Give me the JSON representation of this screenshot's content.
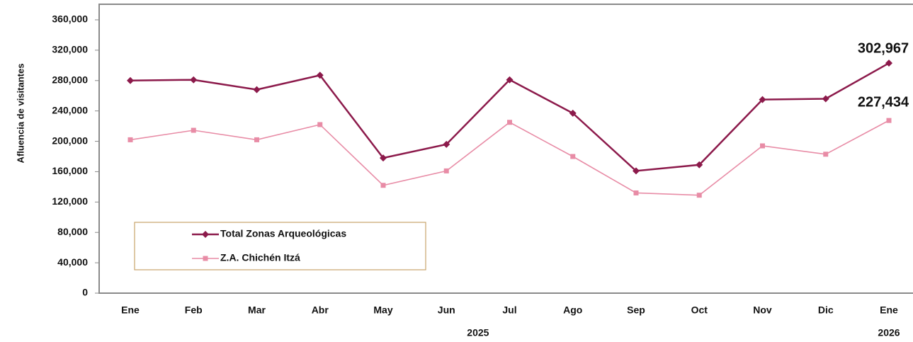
{
  "chart_data": {
    "type": "line",
    "y_label": "Afluencia de visitantes",
    "categories": [
      "Ene",
      "Feb",
      "Mar",
      "Abr",
      "May",
      "Jun",
      "Jul",
      "Ago",
      "Sep",
      "Oct",
      "Nov",
      "Dic",
      "Ene"
    ],
    "groups": [
      {
        "label": "2025",
        "categories": 12
      },
      {
        "label": "2026",
        "categories": 1
      }
    ],
    "series": [
      {
        "name": "Total Zonas Arqueológicas",
        "color": "#8c1a4b",
        "marker": "diamond",
        "values": [
          280000,
          281000,
          268000,
          287000,
          178000,
          196000,
          281000,
          237000,
          161000,
          169000,
          255000,
          256000,
          302967
        ],
        "value_labels": [
          null,
          null,
          null,
          null,
          null,
          null,
          null,
          null,
          null,
          null,
          null,
          null,
          "302,967"
        ]
      },
      {
        "name": "Z.A. Chichén Itzá",
        "color": "#e88ca6",
        "marker": "square",
        "values": [
          202000,
          214500,
          202000,
          222000,
          142000,
          161000,
          225000,
          180000,
          132000,
          129000,
          194000,
          183000,
          227434
        ],
        "value_labels": [
          null,
          null,
          null,
          null,
          null,
          null,
          null,
          null,
          null,
          null,
          null,
          null,
          "227,434"
        ]
      }
    ],
    "ylim": [
      0,
      360000
    ],
    "yticks": [
      0,
      {
        "value": 40000,
        "label": "40,000"
      },
      {
        "value": 80000,
        "label": "80,000"
      },
      {
        "value": 120000,
        "label": "120,000"
      },
      {
        "value": 160000,
        "label": "160,000"
      },
      {
        "value": 200000,
        "label": "200,000"
      },
      {
        "value": 240000,
        "label": "240,000"
      },
      {
        "value": 280000,
        "label": "280,000"
      },
      {
        "value": 320000,
        "label": "320,000"
      },
      {
        "value": 360000,
        "label": "360,000"
      }
    ],
    "grid": false,
    "legend": "lower left"
  }
}
